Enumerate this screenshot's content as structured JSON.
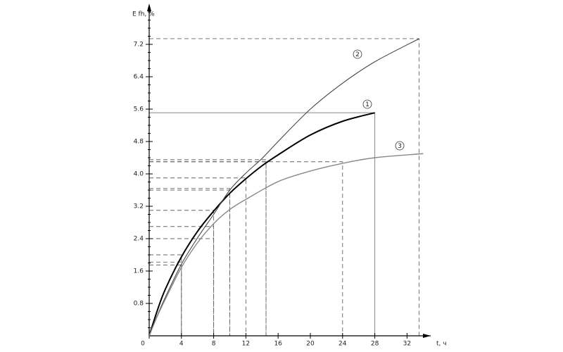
{
  "chart_data": {
    "type": "line",
    "y_label": "E fh, %",
    "x_label": "t, ч",
    "xlim": [
      0,
      34.5
    ],
    "ylim": [
      0,
      8
    ],
    "xticks": [
      0,
      4,
      8,
      12,
      16,
      20,
      24,
      28,
      32
    ],
    "yticks": [
      0.8,
      1.6,
      2.4,
      3.2,
      {
        "value": 4,
        "label": "4.0"
      },
      4.8,
      5.6,
      6.4,
      7.2
    ],
    "series": [
      {
        "name": "1",
        "color": "#000000",
        "x": [
          0,
          1,
          2,
          4,
          6,
          8,
          10,
          12,
          14,
          16,
          20,
          24,
          28
        ],
        "values": [
          0,
          0.62,
          1.15,
          1.95,
          2.58,
          3.08,
          3.52,
          3.88,
          4.2,
          4.47,
          4.96,
          5.3,
          5.51
        ]
      },
      {
        "name": "2",
        "color": "#444444",
        "x": [
          0,
          1,
          2,
          4,
          6,
          8,
          10,
          12,
          14,
          16,
          20,
          24,
          28,
          33.5
        ],
        "values": [
          0,
          0.5,
          0.95,
          1.77,
          2.42,
          3.0,
          3.6,
          4.02,
          4.38,
          4.8,
          5.6,
          6.24,
          6.77,
          7.34
        ]
      },
      {
        "name": "3",
        "color": "#888888",
        "x": [
          0,
          1,
          2,
          4,
          6,
          8,
          10,
          12,
          16,
          20,
          24,
          28,
          34
        ],
        "values": [
          0,
          0.48,
          0.9,
          1.69,
          2.3,
          2.77,
          3.12,
          3.37,
          3.81,
          4.07,
          4.26,
          4.4,
          4.5
        ]
      }
    ],
    "guides": [
      {
        "x": 4,
        "y": 1.82
      },
      {
        "x": 4,
        "y": 1.75
      },
      {
        "x": 4,
        "y": 2.0
      },
      {
        "x": 8,
        "y": 3.1
      },
      {
        "x": 8,
        "y": 2.7
      },
      {
        "x": 8,
        "y": 2.4
      },
      {
        "x": 10,
        "y": 3.6
      },
      {
        "x": 10,
        "y": 3.64
      },
      {
        "x": 12,
        "y": 3.9
      },
      {
        "x": 14.5,
        "y": 4.3
      },
      {
        "x": 14.5,
        "y": 4.35
      },
      {
        "x": 24,
        "y": 4.3
      },
      {
        "x": 33.5,
        "y": 7.34
      },
      {
        "x": 28,
        "y": 5.51,
        "solid": true
      }
    ]
  }
}
